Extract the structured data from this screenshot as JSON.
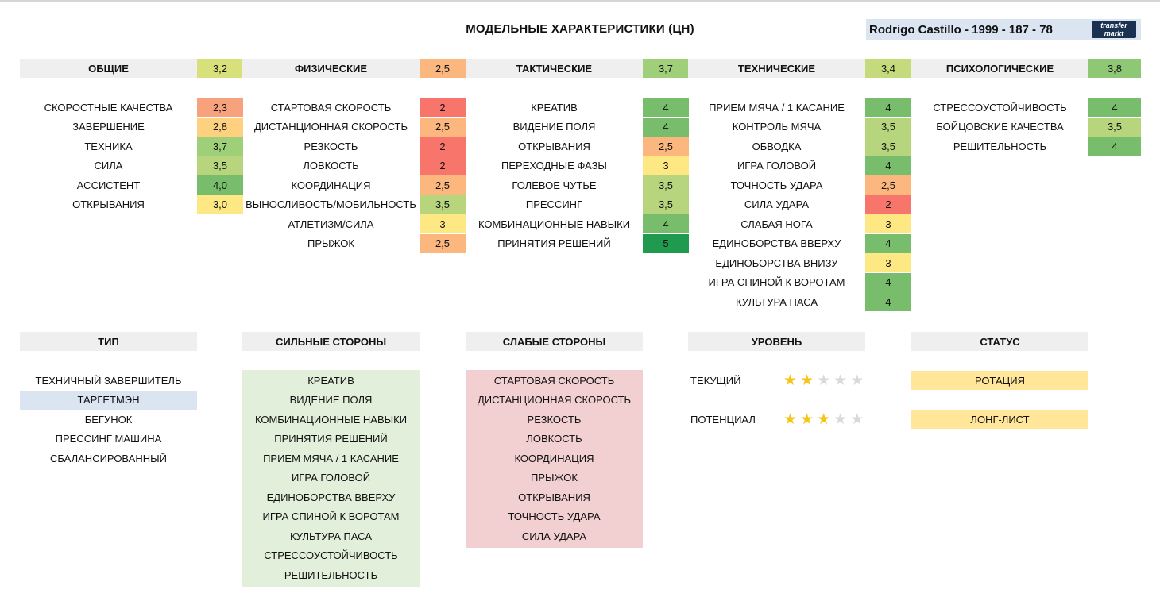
{
  "page": {
    "title": "МОДЕЛЬНЫЕ ХАРАКТЕРИСТИКИ (ЦН)",
    "player": "Rodrigo Castillo - 1999 - 187 - 78",
    "logo_line1": "transfer",
    "logo_line2": "markt"
  },
  "categories": [
    {
      "name": "ОБЩИЕ",
      "score": "3,2",
      "score_color": "#d8e07a",
      "items": [
        {
          "label": "СКОРОСТНЫЕ КАЧЕСТВА",
          "value": "2,3",
          "color": "#f8a27d"
        },
        {
          "label": "ЗАВЕРШЕНИЕ",
          "value": "2,8",
          "color": "#fdd17f"
        },
        {
          "label": "ТЕХНИКА",
          "value": "3,7",
          "color": "#9fcf78"
        },
        {
          "label": "СИЛА",
          "value": "3,5",
          "color": "#b7d57d"
        },
        {
          "label": "АССИСТЕНТ",
          "value": "4,0",
          "color": "#78bd6c"
        },
        {
          "label": "ОТКРЫВАНИЯ",
          "value": "3,0",
          "color": "#fde883"
        }
      ]
    },
    {
      "name": "ФИЗИЧЕСКИЕ",
      "score": "2,5",
      "score_color": "#fbb77e",
      "items": [
        {
          "label": "СТАРТОВАЯ СКОРОСТЬ",
          "value": "2",
          "color": "#f8756b"
        },
        {
          "label": "ДИСТАНЦИОННАЯ СКОРОСТЬ",
          "value": "2,5",
          "color": "#fbb77e"
        },
        {
          "label": "РЕЗКОСТЬ",
          "value": "2",
          "color": "#f8756b"
        },
        {
          "label": "ЛОВКОСТЬ",
          "value": "2",
          "color": "#f8756b"
        },
        {
          "label": "КООРДИНАЦИЯ",
          "value": "2,5",
          "color": "#fbb77e"
        },
        {
          "label": "ВЫНОСЛИВОСТЬ/МОБИЛЬНОСТЬ",
          "value": "3,5",
          "color": "#b7d57d"
        },
        {
          "label": "АТЛЕТИЗМ/СИЛА",
          "value": "3",
          "color": "#fde883"
        },
        {
          "label": "ПРЫЖОК",
          "value": "2,5",
          "color": "#fbb77e"
        }
      ]
    },
    {
      "name": "ТАКТИЧЕСКИЕ",
      "score": "3,7",
      "score_color": "#9fcf78",
      "items": [
        {
          "label": "КРЕАТИВ",
          "value": "4",
          "color": "#78bd6c"
        },
        {
          "label": "ВИДЕНИЕ ПОЛЯ",
          "value": "4",
          "color": "#78bd6c"
        },
        {
          "label": "ОТКРЫВАНИЯ",
          "value": "2,5",
          "color": "#fbb77e"
        },
        {
          "label": "ПЕРЕХОДНЫЕ ФАЗЫ",
          "value": "3",
          "color": "#fde883"
        },
        {
          "label": "ГОЛЕВОЕ ЧУТЬЕ",
          "value": "3,5",
          "color": "#b7d57d"
        },
        {
          "label": "ПРЕССИНГ",
          "value": "3,5",
          "color": "#b7d57d"
        },
        {
          "label": "КОМБИНАЦИОННЫЕ НАВЫКИ",
          "value": "4",
          "color": "#78bd6c"
        },
        {
          "label": "ПРИНЯТИЯ РЕШЕНИЙ",
          "value": "5",
          "color": "#1f9a4f"
        }
      ]
    },
    {
      "name": "ТЕХНИЧЕСКИЕ",
      "score": "3,4",
      "score_color": "#c4da7b",
      "items": [
        {
          "label": "ПРИЕМ МЯЧА / 1 КАСАНИЕ",
          "value": "4",
          "color": "#78bd6c"
        },
        {
          "label": "КОНТРОЛЬ МЯЧА",
          "value": "3,5",
          "color": "#b7d57d"
        },
        {
          "label": "ОБВОДКА",
          "value": "3,5",
          "color": "#b7d57d"
        },
        {
          "label": "ИГРА ГОЛОВОЙ",
          "value": "4",
          "color": "#78bd6c"
        },
        {
          "label": "ТОЧНОСТЬ УДАРА",
          "value": "2,5",
          "color": "#fbb77e"
        },
        {
          "label": "СИЛА УДАРА",
          "value": "2",
          "color": "#f8756b"
        },
        {
          "label": "СЛАБАЯ НОГА",
          "value": "3",
          "color": "#fde883"
        },
        {
          "label": "ЕДИНОБОРСТВА ВВЕРХУ",
          "value": "4",
          "color": "#78bd6c"
        },
        {
          "label": "ЕДИНОБОРСТВА ВНИЗУ",
          "value": "3",
          "color": "#fde883"
        },
        {
          "label": "ИГРА СПИНОЙ К ВОРОТАМ",
          "value": "4",
          "color": "#78bd6c"
        },
        {
          "label": "КУЛЬТУРА ПАСА",
          "value": "4",
          "color": "#78bd6c"
        }
      ]
    },
    {
      "name": "ПСИХОЛОГИЧЕСКИЕ",
      "score": "3,8",
      "score_color": "#8fc874",
      "items": [
        {
          "label": "СТРЕССОУСТОЙЧИВОСТЬ",
          "value": "4",
          "color": "#78bd6c"
        },
        {
          "label": "БОЙЦОВСКИЕ КАЧЕСТВА",
          "value": "3,5",
          "color": "#b7d57d"
        },
        {
          "label": "РЕШИТЕЛЬНОСТЬ",
          "value": "4",
          "color": "#78bd6c"
        }
      ]
    }
  ],
  "type": {
    "header": "ТИП",
    "items": [
      "ТЕХНИЧНЫЙ ЗАВЕРШИТЕЛЬ",
      "ТАРГЕТМЭН",
      "БЕГУНОК",
      "ПРЕССИНГ МАШИНА",
      "СБАЛАНСИРОВАННЫЙ"
    ],
    "selected_color": "#dbe5f1"
  },
  "strengths": {
    "header": "СИЛЬНЫЕ СТОРОНЫ",
    "color": "#e2efda",
    "items": [
      "КРЕАТИВ",
      "ВИДЕНИЕ ПОЛЯ",
      "КОМБИНАЦИОННЫЕ НАВЫКИ",
      "ПРИНЯТИЯ РЕШЕНИЙ",
      "ПРИЕМ МЯЧА / 1 КАСАНИЕ",
      "ИГРА ГОЛОВОЙ",
      "ЕДИНОБОРСТВА ВВЕРХУ",
      "ИГРА СПИНОЙ К ВОРОТАМ",
      "КУЛЬТУРА ПАСА",
      "СТРЕССОУСТОЙЧИВОСТЬ",
      "РЕШИТЕЛЬНОСТЬ"
    ]
  },
  "weaknesses": {
    "header": "СЛАБЫЕ СТОРОНЫ",
    "color": "#f2cfd1",
    "items": [
      "СТАРТОВАЯ СКОРОСТЬ",
      "ДИСТАНЦИОННАЯ СКОРОСТЬ",
      "РЕЗКОСТЬ",
      "ЛОВКОСТЬ",
      "КООРДИНАЦИЯ",
      "ПРЫЖОК",
      "ОТКРЫВАНИЯ",
      "ТОЧНОСТЬ УДАРА",
      "СИЛА УДАРА"
    ]
  },
  "level": {
    "header": "УРОВЕНЬ",
    "current_label": "ТЕКУЩИЙ",
    "current_stars": 2,
    "potential_label": "ПОТЕНЦИАЛ",
    "potential_stars": 3,
    "max_stars": 5
  },
  "status": {
    "header": "СТАТУС",
    "items": [
      "РОТАЦИЯ",
      "ЛОНГ-ЛИСТ"
    ]
  },
  "colors": {
    "header_bg": "#efefef",
    "status_bg": "#ffe699"
  }
}
